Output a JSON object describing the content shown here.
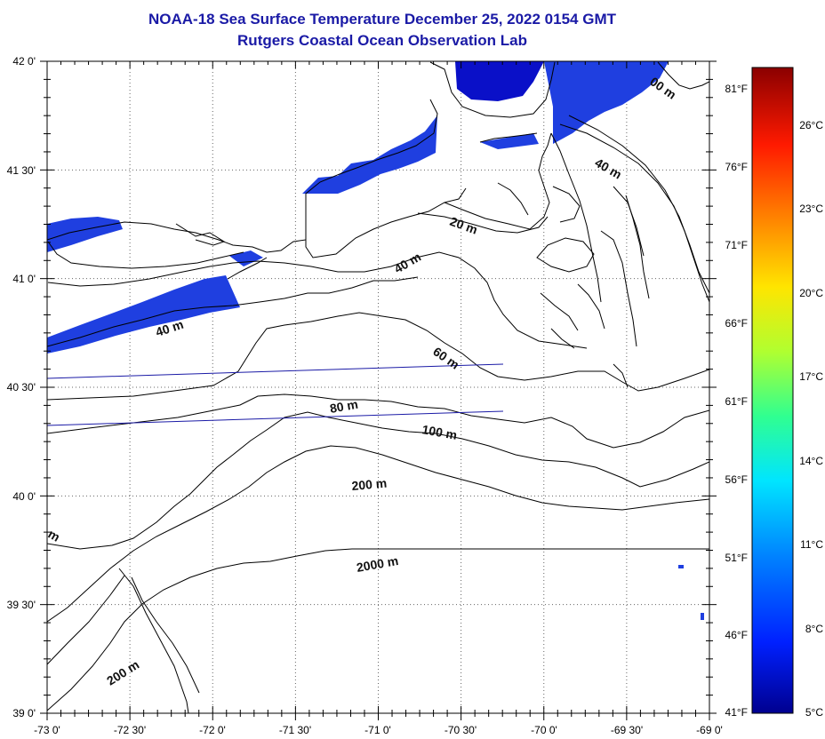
{
  "header": {
    "title": "NOAA-18 Sea Surface Temperature December 25, 2022 0154 GMT",
    "subtitle": "Rutgers Coastal Ocean Observation Lab"
  },
  "map": {
    "lon_labels": [
      "-73 0'",
      "-72 30'",
      "-72 0'",
      "-71 30'",
      "-71 0'",
      "-70 30'",
      "-70 0'",
      "-69 30'",
      "-69 0'"
    ],
    "lat_labels": [
      "42 0'",
      "41 30'",
      "41 0'",
      "40 30'",
      "40 0'",
      "39 30'",
      "39 0'"
    ],
    "depth_labels": [
      "40 m",
      "40 m",
      "20 m",
      "40 m",
      "60 m",
      "80 m",
      "100 m",
      "200 m",
      "2000 m",
      "200 m",
      "m",
      "00 m"
    ],
    "colors": {
      "ocean_background": "#ffffff",
      "contour": "#000000",
      "coastline": "#000000",
      "sst_cold": "#1f3fe0",
      "sst_deep": "#0a10c8",
      "track": "#1a1aa6",
      "title": "#1a1aa6"
    }
  },
  "colorbar": {
    "fahrenheit_labels": [
      "81°F",
      "76°F",
      "71°F",
      "66°F",
      "61°F",
      "56°F",
      "51°F",
      "46°F",
      "41°F"
    ],
    "celsius_labels": [
      "26°C",
      "23°C",
      "20°C",
      "17°C",
      "14°C",
      "11°C",
      "8°C",
      "5°C"
    ],
    "gradient_stops": [
      "#00008f",
      "#0020ff",
      "#0080ff",
      "#00e5ff",
      "#30ff90",
      "#b0ff30",
      "#ffe500",
      "#ff8000",
      "#ff1a00",
      "#8b0000"
    ]
  }
}
